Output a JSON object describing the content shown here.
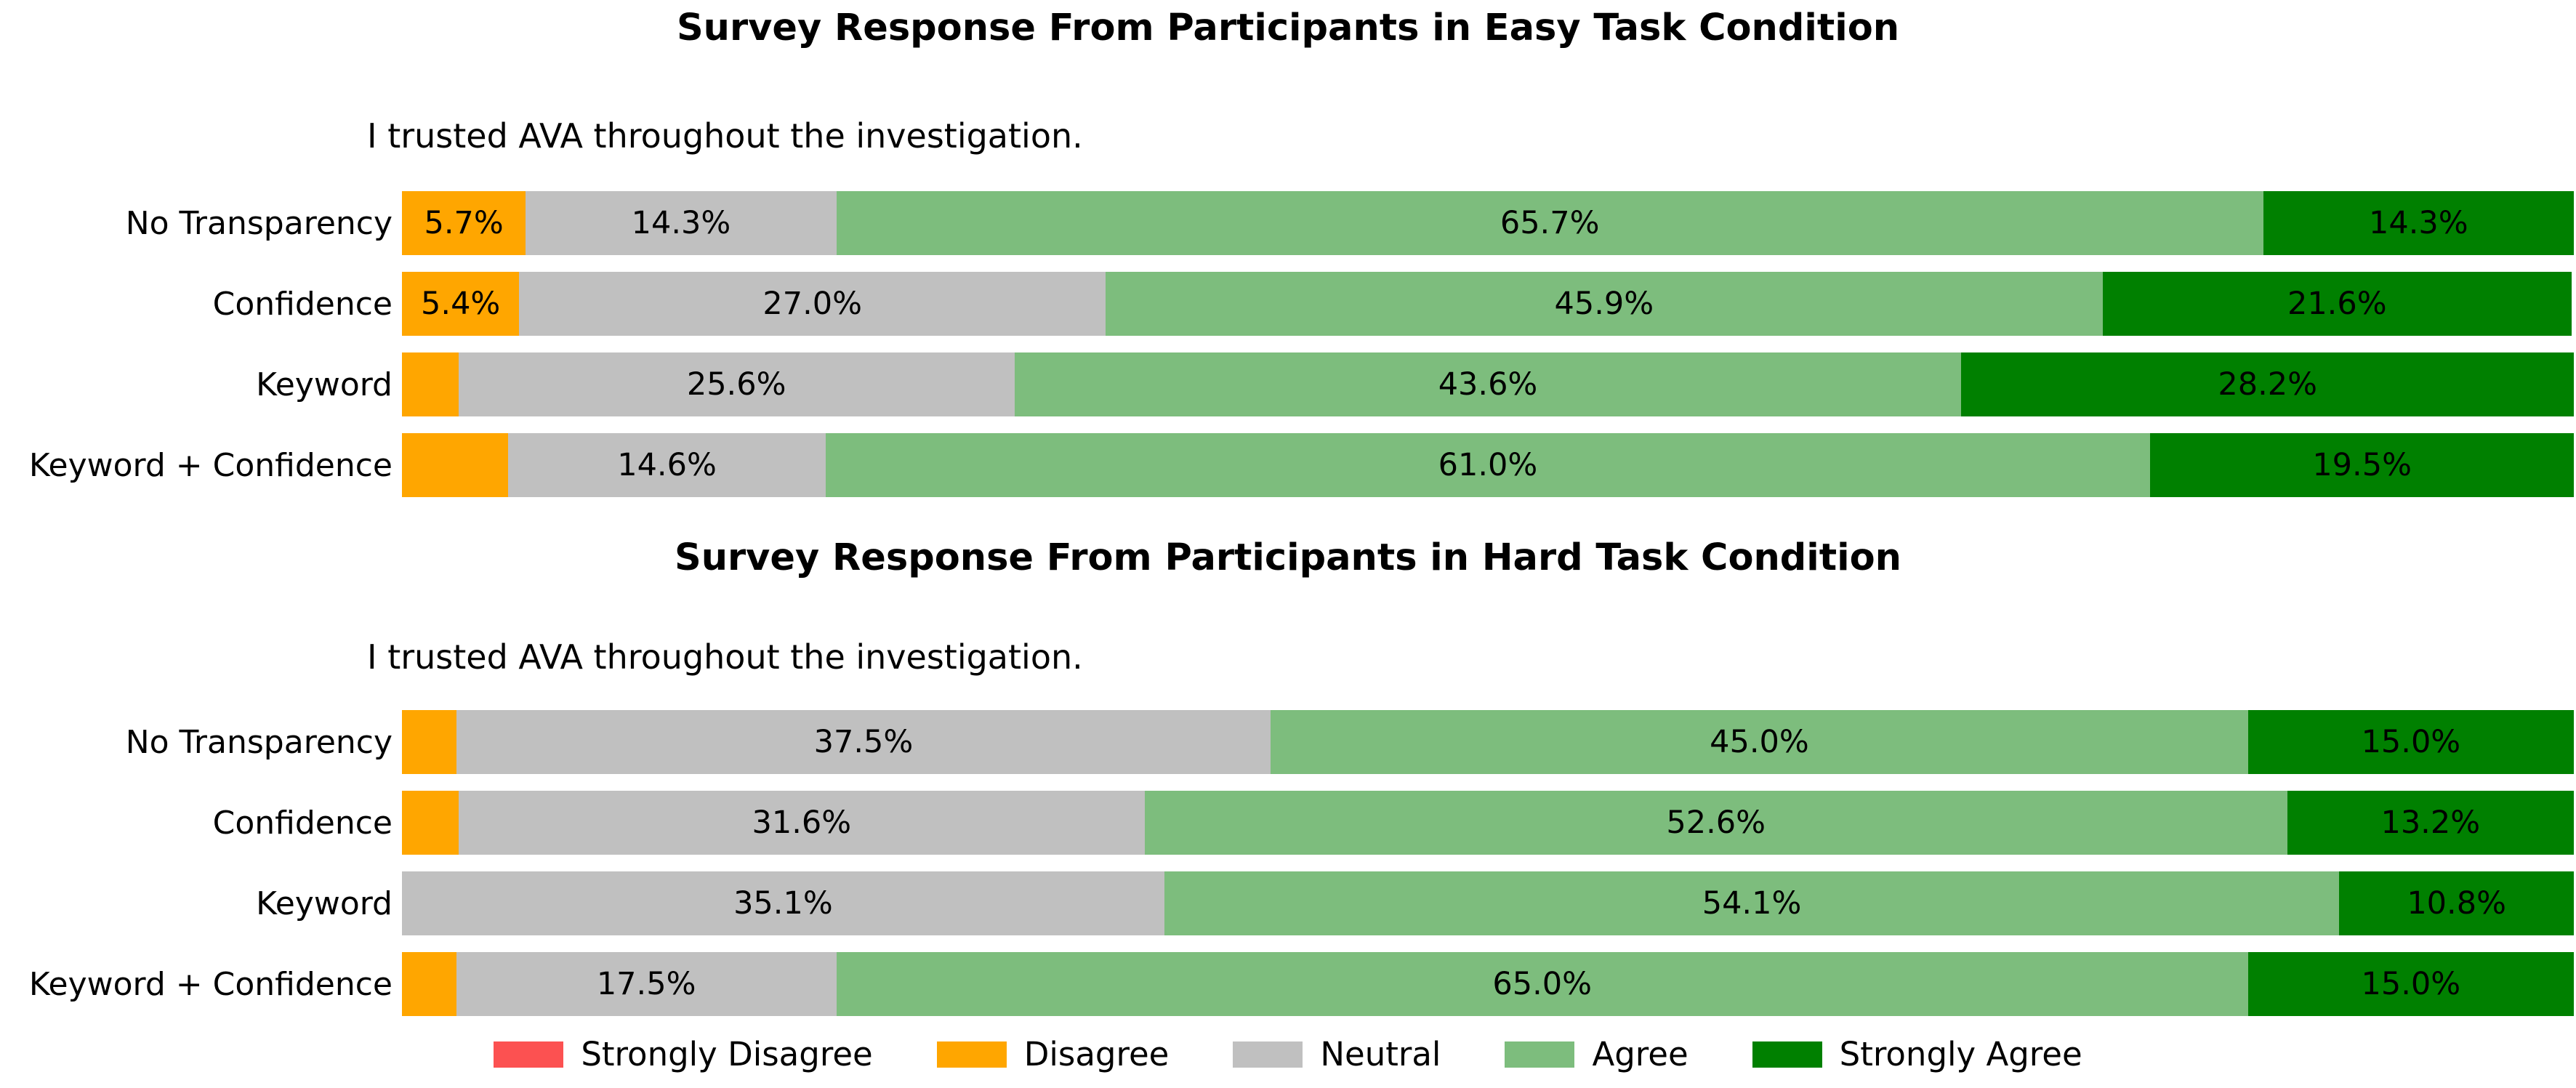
{
  "background_color": "#ffffff",
  "colors": {
    "strongly_disagree": "#fc5151",
    "disagree": "#ffa600",
    "neutral": "#c0c0c0",
    "agree": "#7dbd7d",
    "strongly_agree": "#008000",
    "text": "#000000"
  },
  "legend": {
    "items": [
      {
        "key": "strongly_disagree",
        "label": "Strongly Disagree"
      },
      {
        "key": "disagree",
        "label": "Disagree"
      },
      {
        "key": "neutral",
        "label": "Neutral"
      },
      {
        "key": "agree",
        "label": "Agree"
      },
      {
        "key": "strongly_agree",
        "label": "Strongly Agree"
      }
    ]
  },
  "chart_data": [
    {
      "type": "bar",
      "stacked": true,
      "orientation": "horizontal",
      "title": "Survey Response From Participants in Easy Task Condition",
      "subtitle": "I trusted AVA throughout the investigation.",
      "xlim": [
        0,
        100
      ],
      "unit": "%",
      "grid": false,
      "legend_position": "bottom-shared",
      "categories": [
        "No Transparency",
        "Confidence",
        "Keyword",
        "Keyword + Confidence"
      ],
      "series": [
        {
          "name": "Strongly Disagree",
          "key": "strongly_disagree",
          "values": [
            0,
            0,
            0,
            0
          ],
          "labels": [
            "",
            "",
            "",
            ""
          ]
        },
        {
          "name": "Disagree",
          "key": "disagree",
          "values": [
            5.7,
            5.4,
            2.6,
            4.9
          ],
          "labels": [
            "5.7%",
            "5.4%",
            "",
            ""
          ]
        },
        {
          "name": "Neutral",
          "key": "neutral",
          "values": [
            14.3,
            27.0,
            25.6,
            14.6
          ],
          "labels": [
            "14.3%",
            "27.0%",
            "25.6%",
            "14.6%"
          ]
        },
        {
          "name": "Agree",
          "key": "agree",
          "values": [
            65.7,
            45.9,
            43.6,
            61.0
          ],
          "labels": [
            "65.7%",
            "45.9%",
            "43.6%",
            "61.0%"
          ]
        },
        {
          "name": "Strongly Agree",
          "key": "strongly_agree",
          "values": [
            14.3,
            21.6,
            28.2,
            19.5
          ],
          "labels": [
            "14.3%",
            "21.6%",
            "28.2%",
            "19.5%"
          ]
        }
      ]
    },
    {
      "type": "bar",
      "stacked": true,
      "orientation": "horizontal",
      "title": "Survey Response From Participants in Hard Task Condition",
      "subtitle": "I trusted AVA throughout the investigation.",
      "xlim": [
        0,
        100
      ],
      "unit": "%",
      "grid": false,
      "legend_position": "bottom-shared",
      "categories": [
        "No Transparency",
        "Confidence",
        "Keyword",
        "Keyword + Confidence"
      ],
      "series": [
        {
          "name": "Strongly Disagree",
          "key": "strongly_disagree",
          "values": [
            0,
            0,
            0,
            0
          ],
          "labels": [
            "",
            "",
            "",
            ""
          ]
        },
        {
          "name": "Disagree",
          "key": "disagree",
          "values": [
            2.5,
            2.6,
            0,
            2.5
          ],
          "labels": [
            "",
            "",
            "",
            ""
          ]
        },
        {
          "name": "Neutral",
          "key": "neutral",
          "values": [
            37.5,
            31.6,
            35.1,
            17.5
          ],
          "labels": [
            "37.5%",
            "31.6%",
            "35.1%",
            "17.5%"
          ]
        },
        {
          "name": "Agree",
          "key": "agree",
          "values": [
            45.0,
            52.6,
            54.1,
            65.0
          ],
          "labels": [
            "45.0%",
            "52.6%",
            "54.1%",
            "65.0%"
          ]
        },
        {
          "name": "Strongly Agree",
          "key": "strongly_agree",
          "values": [
            15.0,
            13.2,
            10.8,
            15.0
          ],
          "labels": [
            "15.0%",
            "13.2%",
            "10.8%",
            "15.0%"
          ]
        }
      ]
    }
  ]
}
